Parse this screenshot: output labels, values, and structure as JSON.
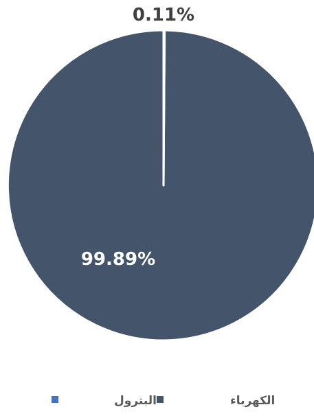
{
  "chart_data": {
    "type": "pie",
    "title": "",
    "categories": [
      "الكهرباء",
      "البترول"
    ],
    "values": [
      99.89,
      0.11
    ],
    "value_labels": [
      "99.89%",
      "0.11%"
    ],
    "colors": [
      "#44546a",
      "#4472c4"
    ],
    "label_colors": [
      "#ffffff",
      "#404040"
    ],
    "legend": {
      "position": "bottom",
      "entries": [
        "الكهرباء",
        "البترول"
      ]
    }
  }
}
